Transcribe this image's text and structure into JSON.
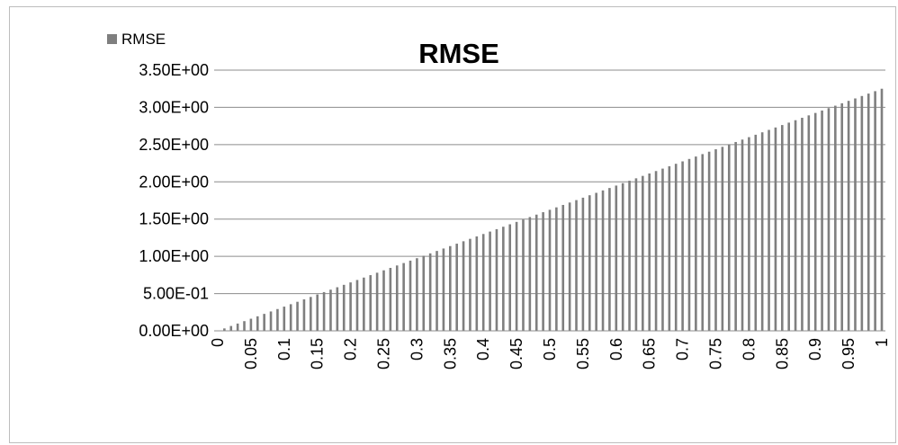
{
  "chart_data": {
    "type": "bar",
    "title": "RMSE",
    "legend": {
      "entries": [
        "RMSE"
      ],
      "position": "top-left"
    },
    "series": [
      {
        "name": "RMSE",
        "color": "#7f7f7f"
      }
    ],
    "x": {
      "start": 0,
      "end": 1,
      "step": 0.01,
      "tick_labels": [
        "0",
        "0.05",
        "0.1",
        "0.15",
        "0.2",
        "0.25",
        "0.3",
        "0.35",
        "0.4",
        "0.45",
        "0.5",
        "0.55",
        "0.6",
        "0.65",
        "0.7",
        "0.75",
        "0.8",
        "0.85",
        "0.9",
        "0.95",
        "1"
      ]
    },
    "y": {
      "ylim": [
        0,
        3.5
      ],
      "tick_values": [
        0,
        0.5,
        1,
        1.5,
        2,
        2.5,
        3,
        3.5
      ],
      "tick_labels": [
        "0.00E+00",
        "5.00E-01",
        "1.00E+00",
        "1.50E+00",
        "2.00E+00",
        "2.50E+00",
        "3.00E+00",
        "3.50E+00"
      ]
    },
    "value_rule": {
      "slope": 3.25,
      "intercept": 0
    },
    "grid": "horizontal"
  }
}
